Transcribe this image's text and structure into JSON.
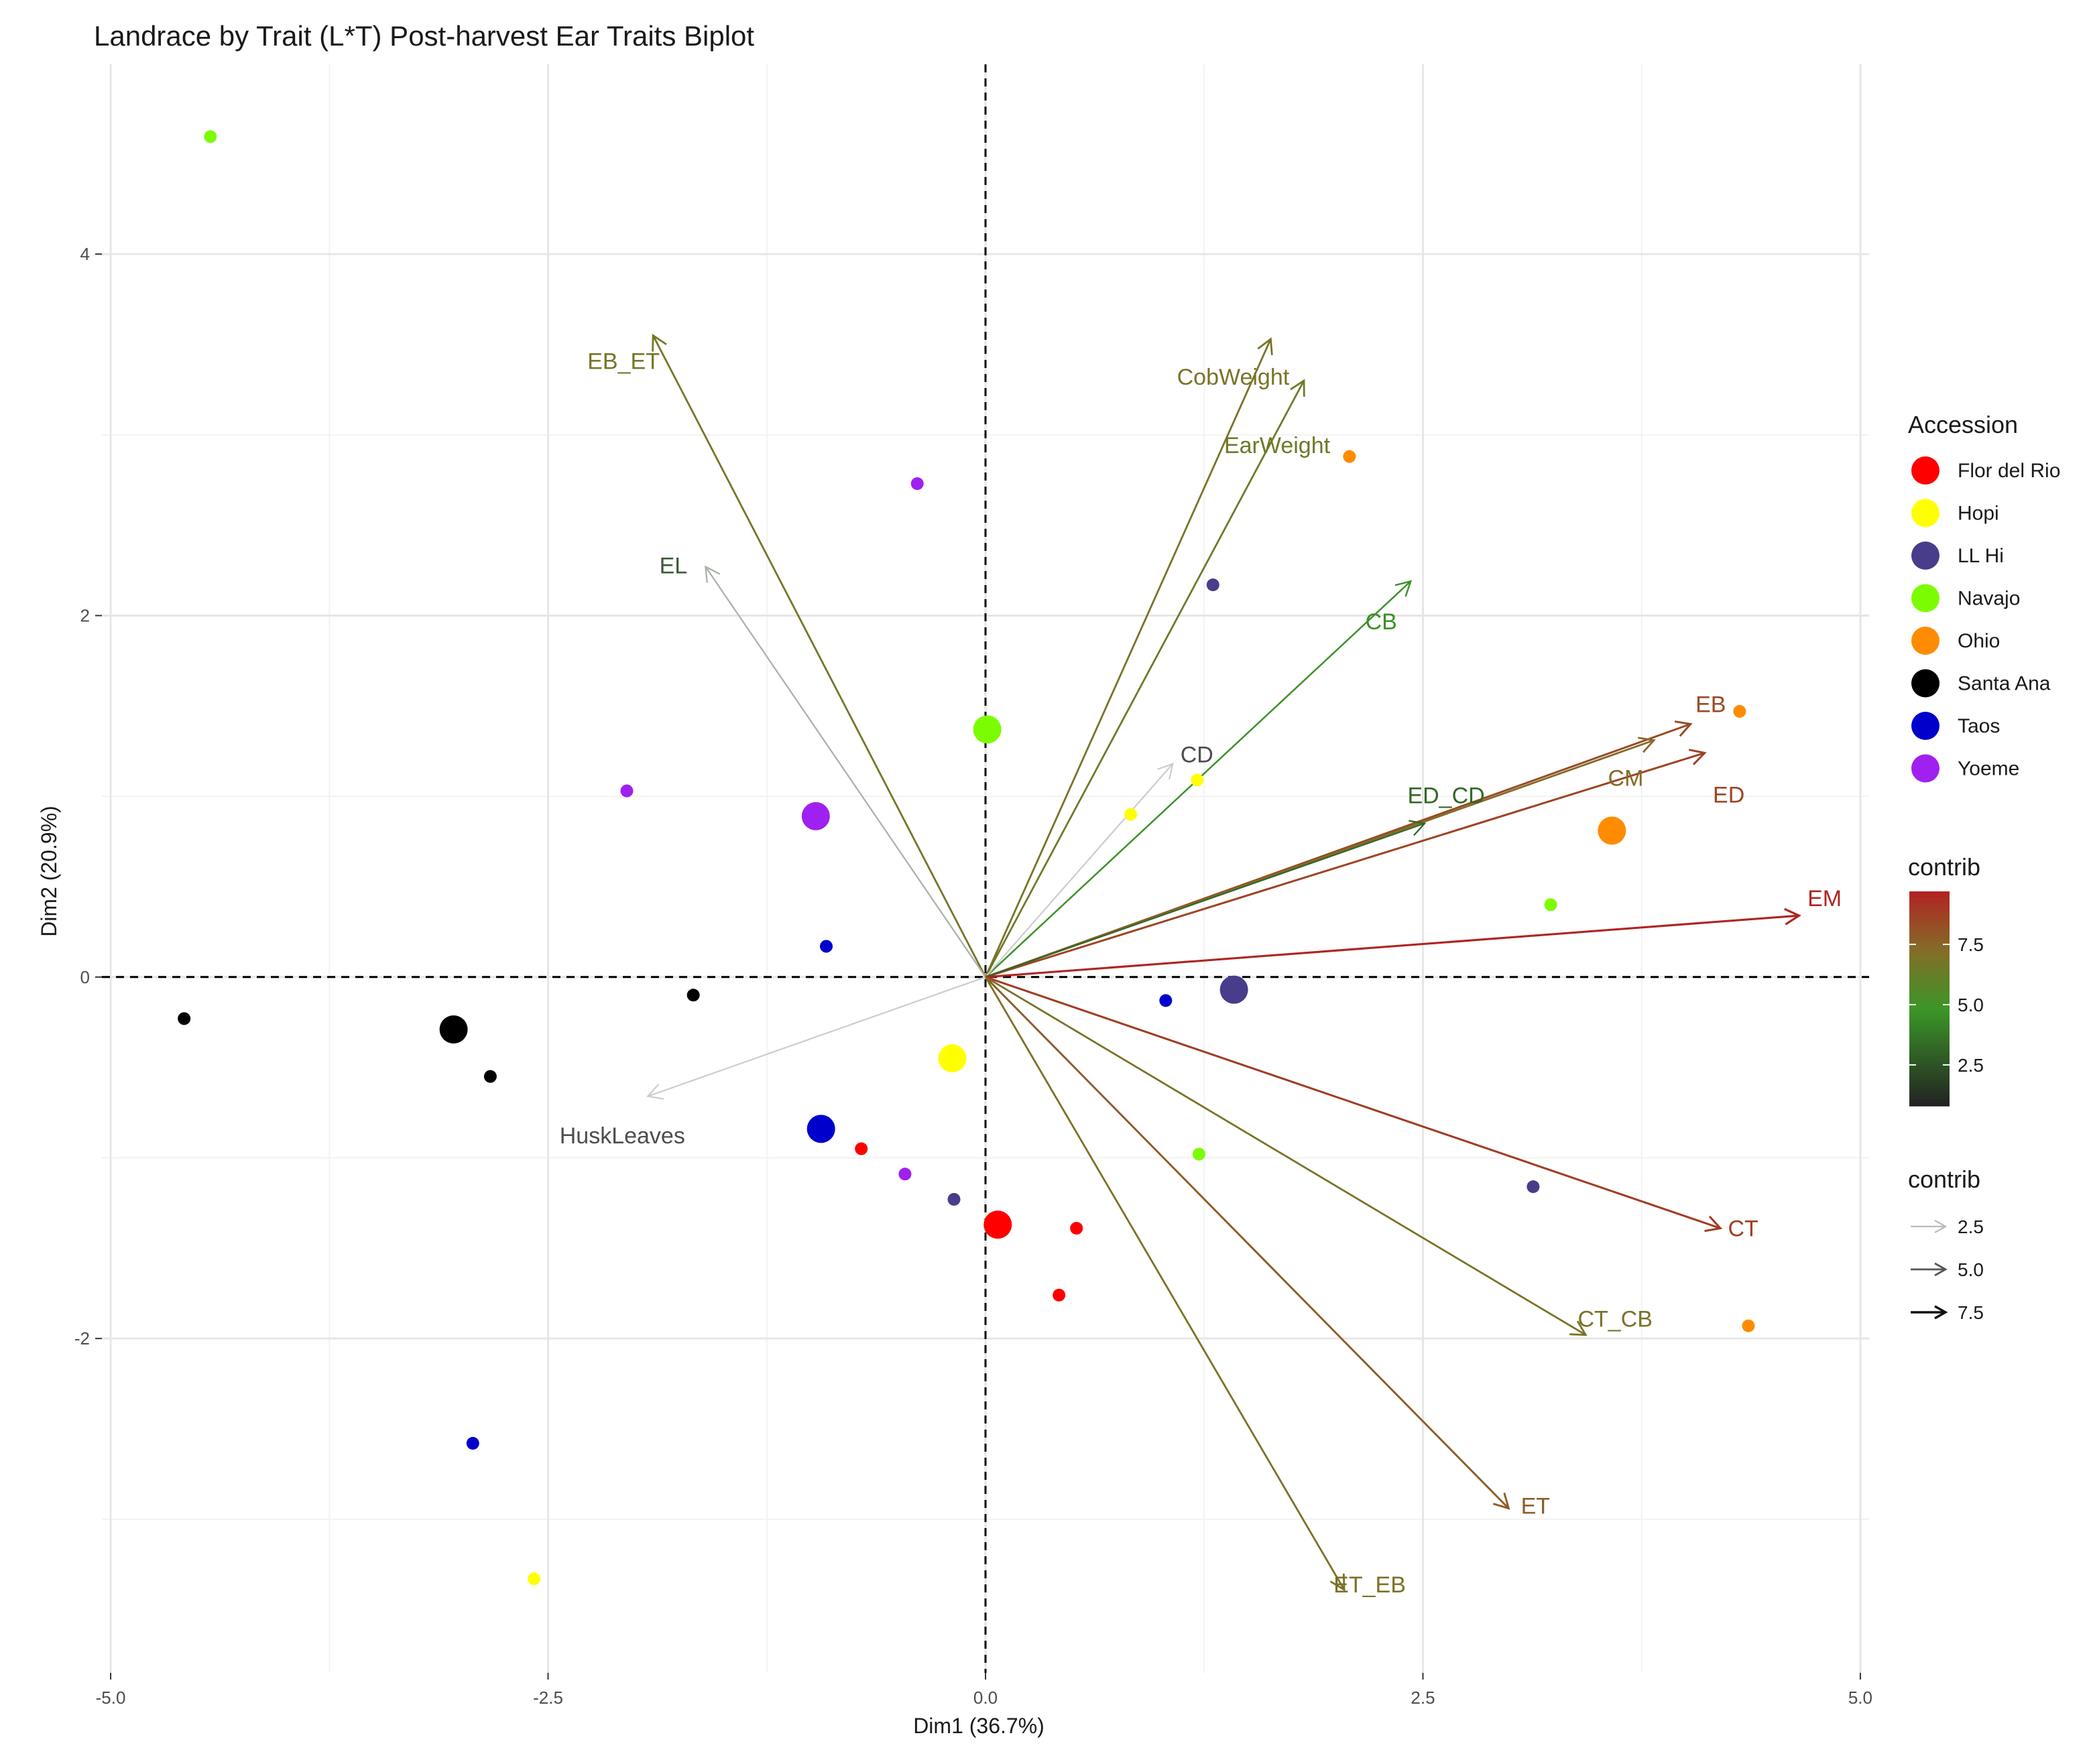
{
  "chart_data": {
    "type": "scatter",
    "title": "Landrace by Trait (L*T) Post-harvest Ear Traits Biplot",
    "xlabel": "Dim1 (36.7%)",
    "ylabel": "Dim2 (20.9%)",
    "xlim": [
      -5.05,
      5.05
    ],
    "ylim": [
      -3.85,
      5.05
    ],
    "x_ticks": [
      -5.0,
      -2.5,
      0.0,
      2.5,
      5.0
    ],
    "x_tick_labels": [
      "-5.0",
      "-2.5",
      "0.0",
      "2.5",
      "5.0"
    ],
    "y_ticks": [
      -2,
      0,
      2,
      4
    ],
    "y_tick_labels": [
      "-2",
      "0",
      "2",
      "4"
    ],
    "grid": true,
    "legend": {
      "placement": "right",
      "accession_title": "Accession",
      "contrib_color_title": "contrib",
      "contrib_color_ticks": [
        "2.5",
        "5.0",
        "7.5"
      ],
      "contrib_color_range": [
        0.8,
        9.7
      ],
      "contrib_width_title": "contrib",
      "contrib_width_entries": [
        "2.5",
        "5.0",
        "7.5"
      ]
    },
    "groups": [
      {
        "name": "Flor del Rio",
        "color": "#ff0000"
      },
      {
        "name": "Hopi",
        "color": "#ffff00"
      },
      {
        "name": "LL Hi",
        "color": "#483d8b"
      },
      {
        "name": "Navajo",
        "color": "#7cfc00"
      },
      {
        "name": "Ohio",
        "color": "#ff8c00"
      },
      {
        "name": "Santa Ana",
        "color": "#000000"
      },
      {
        "name": "Taos",
        "color": "#0000cd"
      },
      {
        "name": "Yoeme",
        "color": "#a020f0"
      }
    ],
    "points": [
      {
        "group": "Navajo",
        "x": -4.43,
        "y": 4.65
      },
      {
        "group": "Yoeme",
        "x": -0.39,
        "y": 2.73
      },
      {
        "group": "Ohio",
        "x": 2.08,
        "y": 2.88
      },
      {
        "group": "LL Hi",
        "x": 1.3,
        "y": 2.17
      },
      {
        "group": "Ohio",
        "x": 4.31,
        "y": 1.47
      },
      {
        "group": "Hopi",
        "x": 1.21,
        "y": 1.09
      },
      {
        "group": "Hopi",
        "x": 0.83,
        "y": 0.9
      },
      {
        "group": "Yoeme",
        "x": -2.05,
        "y": 1.03
      },
      {
        "group": "Navajo",
        "x": 3.23,
        "y": 0.4
      },
      {
        "group": "Taos",
        "x": -0.91,
        "y": 0.17
      },
      {
        "group": "Santa Ana",
        "x": -1.67,
        "y": -0.1
      },
      {
        "group": "Santa Ana",
        "x": -4.58,
        "y": -0.23
      },
      {
        "group": "Santa Ana",
        "x": -2.83,
        "y": -0.55
      },
      {
        "group": "Taos",
        "x": 1.03,
        "y": -0.13
      },
      {
        "group": "Flor del Rio",
        "x": -0.71,
        "y": -0.95
      },
      {
        "group": "Yoeme",
        "x": -0.46,
        "y": -1.09
      },
      {
        "group": "LL Hi",
        "x": -0.18,
        "y": -1.23
      },
      {
        "group": "Navajo",
        "x": 1.22,
        "y": -0.98
      },
      {
        "group": "Flor del Rio",
        "x": 0.52,
        "y": -1.39
      },
      {
        "group": "Flor del Rio",
        "x": 0.42,
        "y": -1.76
      },
      {
        "group": "LL Hi",
        "x": 3.13,
        "y": -1.16
      },
      {
        "group": "Ohio",
        "x": 4.36,
        "y": -1.93
      },
      {
        "group": "Taos",
        "x": -2.93,
        "y": -2.58
      },
      {
        "group": "Hopi",
        "x": -2.58,
        "y": -3.33
      }
    ],
    "centroids": [
      {
        "group": "Flor del Rio",
        "x": 0.07,
        "y": -1.37
      },
      {
        "group": "Hopi",
        "x": -0.19,
        "y": -0.45
      },
      {
        "group": "LL Hi",
        "x": 1.42,
        "y": -0.07
      },
      {
        "group": "Navajo",
        "x": 0.01,
        "y": 1.37
      },
      {
        "group": "Ohio",
        "x": 3.58,
        "y": 0.81
      },
      {
        "group": "Santa Ana",
        "x": -3.04,
        "y": -0.29
      },
      {
        "group": "Taos",
        "x": -0.94,
        "y": -0.84
      },
      {
        "group": "Yoeme",
        "x": -0.97,
        "y": 0.89
      }
    ],
    "variables": [
      {
        "name": "EB_ET",
        "x": -1.9,
        "y": 3.55,
        "contrib": 6.8
      },
      {
        "name": "CobWeight",
        "x": 1.63,
        "y": 3.53,
        "contrib": 6.9
      },
      {
        "name": "EarWeight",
        "x": 1.82,
        "y": 3.3,
        "contrib": 6.6
      },
      {
        "name": "EL",
        "x": -1.6,
        "y": 2.27,
        "contrib": 2.0
      },
      {
        "name": "CB",
        "x": 2.43,
        "y": 2.19,
        "contrib": 4.6
      },
      {
        "name": "CD",
        "x": 1.07,
        "y": 1.18,
        "contrib": 1.1
      },
      {
        "name": "EB",
        "x": 4.03,
        "y": 1.4,
        "contrib": 8.4
      },
      {
        "name": "CM",
        "x": 3.82,
        "y": 1.31,
        "contrib": 7.3
      },
      {
        "name": "ED",
        "x": 4.11,
        "y": 1.24,
        "contrib": 8.6
      },
      {
        "name": "ED_CD",
        "x": 2.51,
        "y": 0.85,
        "contrib": 3.2
      },
      {
        "name": "EM",
        "x": 4.65,
        "y": 0.34,
        "contrib": 9.6
      },
      {
        "name": "HuskLeaves",
        "x": -1.93,
        "y": -0.66,
        "contrib": 1.0
      },
      {
        "name": "CT",
        "x": 4.2,
        "y": -1.39,
        "contrib": 8.8
      },
      {
        "name": "CT_CB",
        "x": 3.43,
        "y": -1.98,
        "contrib": 6.9
      },
      {
        "name": "ET",
        "x": 2.99,
        "y": -2.94,
        "contrib": 7.8
      },
      {
        "name": "ET_EB",
        "x": 2.05,
        "y": -3.39,
        "contrib": 7.0
      }
    ]
  }
}
